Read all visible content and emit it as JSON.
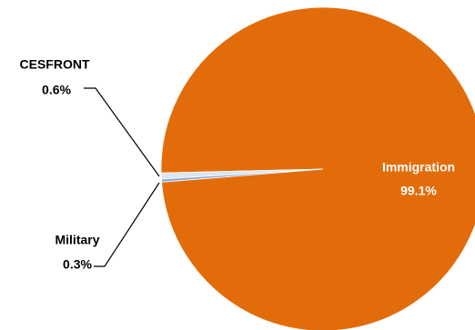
{
  "chart_data": {
    "type": "pie",
    "categories": [
      "Immigration",
      "CESFRONT",
      "Military"
    ],
    "values": [
      99.1,
      0.6,
      0.3
    ],
    "value_labels": [
      "99.1%",
      "0.6%",
      "0.3%"
    ],
    "colors": [
      "#e36c0a",
      "#dbe5f1",
      "#8eaadb"
    ]
  }
}
